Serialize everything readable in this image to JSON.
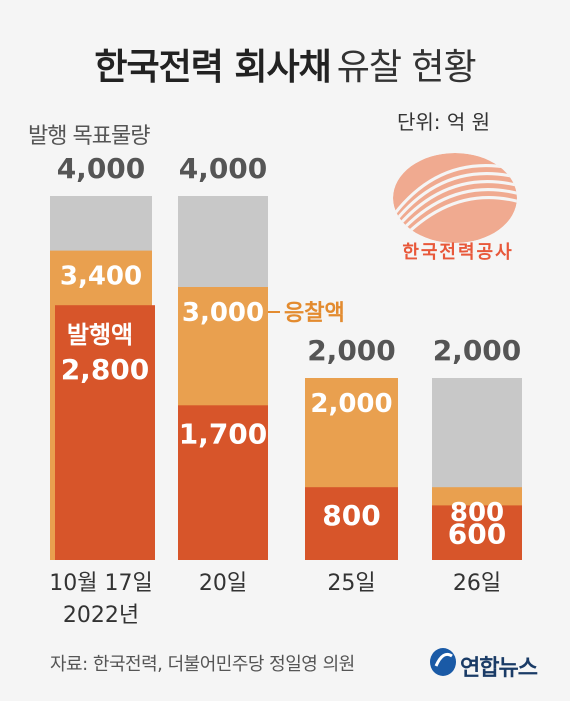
{
  "title_bold": "한국전력 회사채",
  "title_light": "유찰 현황",
  "unit": "단위: 억 원",
  "source": "자료: 한국전력, 더불어민주당 정일영 의원",
  "kepco_logo_text": "한국전력공사",
  "agency": "연합뉴스",
  "colors": {
    "target": "#c8c8c8",
    "bid": "#e9a04f",
    "issued": "#d7552a",
    "bid_label_color": "#e38b2f"
  },
  "chart_data": {
    "type": "bar",
    "title": "한국전력 회사채 유찰 현황",
    "categories": [
      "10월 17일\n2022년",
      "20일",
      "25일",
      "26일"
    ],
    "category_lines": [
      [
        "10월 17일",
        "2022년"
      ],
      [
        "20일"
      ],
      [
        "25일"
      ],
      [
        "26일"
      ]
    ],
    "series": [
      {
        "name": "발행 목표물량",
        "values": [
          4000,
          4000,
          2000,
          2000
        ]
      },
      {
        "name": "응찰액",
        "values": [
          3400,
          3000,
          2000,
          800
        ]
      },
      {
        "name": "발행액",
        "values": [
          2800,
          1700,
          800,
          600
        ]
      }
    ],
    "value_labels": {
      "target": [
        "4,000",
        "4,000",
        "2,000",
        "2,000"
      ],
      "bid": [
        "3,400",
        "3,000",
        "2,000",
        "800"
      ],
      "issued": [
        "2,800",
        "1,700",
        "800",
        "600"
      ]
    },
    "annotations": {
      "target_label": "발행 목표물량",
      "bid_label": "응찰액",
      "issued_label": "발행액"
    },
    "ylim": [
      0,
      4000
    ]
  }
}
